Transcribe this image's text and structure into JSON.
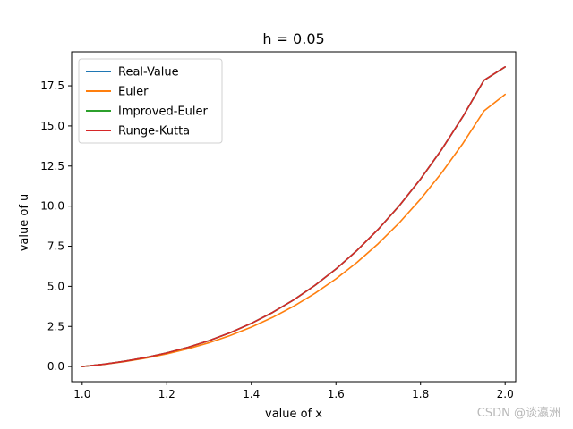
{
  "chart_data": {
    "type": "line",
    "title": "h = 0.05",
    "xlabel": "value of x",
    "ylabel": "value of u",
    "xlim": [
      0.975,
      2.025
    ],
    "ylim": [
      -0.94,
      19.62
    ],
    "xticks": [
      1.0,
      1.2,
      1.4,
      1.6,
      1.8,
      2.0
    ],
    "xtick_labels": [
      "1.0",
      "1.2",
      "1.4",
      "1.6",
      "1.8",
      "2.0"
    ],
    "yticks": [
      0.0,
      2.5,
      5.0,
      7.5,
      10.0,
      12.5,
      15.0,
      17.5
    ],
    "ytick_labels": [
      "0.0",
      "2.5",
      "5.0",
      "7.5",
      "10.0",
      "12.5",
      "15.0",
      "17.5"
    ],
    "grid": false,
    "legend_position": "upper-left",
    "x": [
      1.0,
      1.05,
      1.1,
      1.15,
      1.2,
      1.25,
      1.3,
      1.35,
      1.4,
      1.45,
      1.5,
      1.55,
      1.6,
      1.65,
      1.7,
      1.75,
      1.8,
      1.85,
      1.9,
      1.95,
      2.0
    ],
    "series": [
      {
        "name": "Real-Value",
        "color": "#1f77b4",
        "values": [
          0.0,
          0.1443,
          0.3297,
          0.5624,
          0.8493,
          1.1979,
          1.6159,
          2.1116,
          2.694,
          3.3721,
          4.1556,
          5.055,
          6.0811,
          7.2452,
          8.5597,
          10.037,
          11.6904,
          13.5338,
          15.5817,
          17.8492,
          18.6831
        ]
      },
      {
        "name": "Euler",
        "color": "#ff7f0e",
        "values": [
          0.0,
          0.1359,
          0.3086,
          0.524,
          0.7881,
          1.1069,
          1.4868,
          1.9344,
          2.4571,
          3.0632,
          3.7607,
          4.559,
          5.468,
          6.4986,
          7.6617,
          8.97,
          10.4364,
          12.0756,
          13.9024,
          15.933,
          16.9658
        ]
      },
      {
        "name": "Improved-Euler",
        "color": "#2ca02c",
        "values": [
          0.0,
          0.1443,
          0.3296,
          0.5622,
          0.849,
          1.1974,
          1.6152,
          2.1106,
          2.6927,
          3.3705,
          4.1536,
          5.0526,
          6.0783,
          7.242,
          8.556,
          10.0328,
          11.6856,
          13.5283,
          15.5755,
          17.8421,
          18.675
        ]
      },
      {
        "name": "Runge-Kutta",
        "color": "#d62728",
        "values": [
          0.0,
          0.1443,
          0.3297,
          0.5624,
          0.8493,
          1.1979,
          1.6159,
          2.1116,
          2.694,
          3.3721,
          4.1556,
          5.055,
          6.0811,
          7.2452,
          8.5597,
          10.037,
          11.6904,
          13.5338,
          15.5817,
          17.8492,
          18.6831
        ]
      }
    ]
  },
  "watermark": "CSDN @谈瀛洲"
}
